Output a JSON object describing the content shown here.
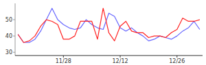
{
  "chart_data": {
    "type": "line",
    "categories": [
      null,
      null,
      null,
      null,
      null,
      null,
      null,
      null,
      "11/28",
      null,
      null,
      null,
      null,
      null,
      null,
      null,
      null,
      null,
      "12/12",
      null,
      null,
      null,
      null,
      null,
      null,
      null,
      null,
      null,
      "12/26",
      null,
      null,
      null,
      null
    ],
    "series": [
      {
        "color": "#6666ff",
        "values": [
          41,
          36,
          36,
          38,
          43,
          50,
          57,
          50,
          47,
          45,
          44,
          45,
          50,
          47,
          45,
          44,
          54,
          52,
          45,
          43,
          45,
          42,
          40,
          37,
          38,
          40,
          39,
          38,
          40,
          43,
          45,
          49,
          44
        ]
      },
      {
        "color": "#ff2222",
        "values": [
          41,
          36,
          37,
          40,
          46,
          50,
          49,
          47,
          38,
          38,
          40,
          49,
          49,
          49,
          38,
          57,
          42,
          37,
          46,
          49,
          43,
          42,
          42,
          39,
          40,
          40,
          39,
          42,
          44,
          51,
          49,
          49,
          50
        ]
      }
    ],
    "ylim": [
      28,
      60
    ],
    "yticks": [
      30,
      40,
      50
    ],
    "grid": false
  }
}
